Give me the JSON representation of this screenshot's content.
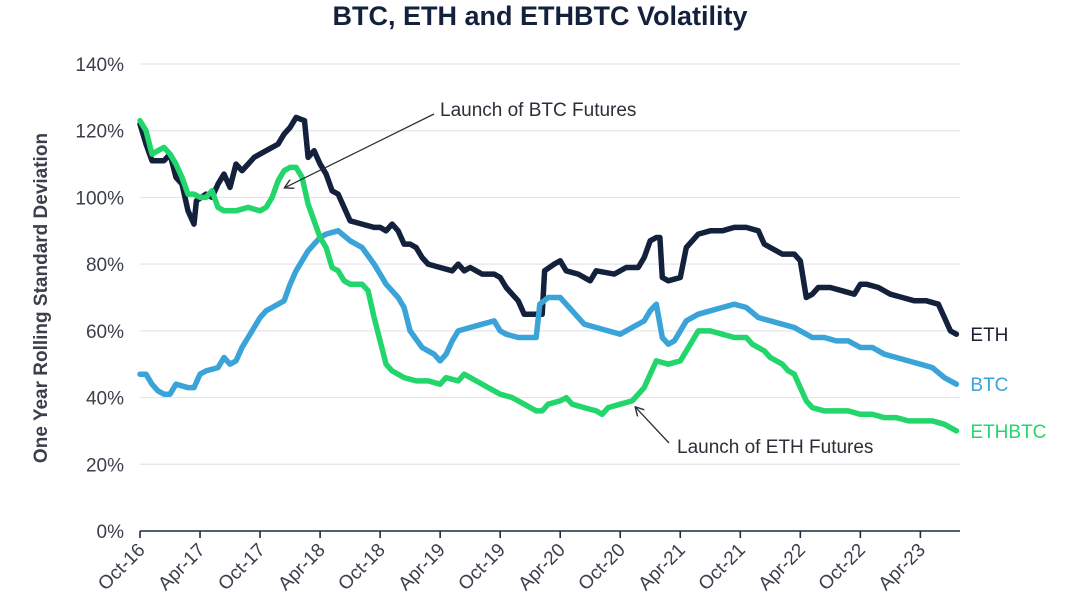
{
  "chart_data": {
    "type": "line",
    "title": "BTC, ETH and ETHBTC Volatility",
    "xlabel": "",
    "ylabel": "One Year Rolling Standard Deviation",
    "ylim": [
      0,
      140
    ],
    "yticks": [
      "0%",
      "20%",
      "40%",
      "60%",
      "80%",
      "100%",
      "120%",
      "140%"
    ],
    "xlim": [
      2016.75,
      2023.58
    ],
    "x_ticks": [
      {
        "label": "Oct-16",
        "x": 2016.75
      },
      {
        "label": "Apr-17",
        "x": 2017.25
      },
      {
        "label": "Oct-17",
        "x": 2017.75
      },
      {
        "label": "Apr-18",
        "x": 2018.25
      },
      {
        "label": "Oct-18",
        "x": 2018.75
      },
      {
        "label": "Apr-19",
        "x": 2019.25
      },
      {
        "label": "Oct-19",
        "x": 2019.75
      },
      {
        "label": "Apr-20",
        "x": 2020.25
      },
      {
        "label": "Oct-20",
        "x": 2020.75
      },
      {
        "label": "Apr-21",
        "x": 2021.25
      },
      {
        "label": "Oct-21",
        "x": 2021.75
      },
      {
        "label": "Apr-22",
        "x": 2022.25
      },
      {
        "label": "Oct-22",
        "x": 2022.75
      },
      {
        "label": "Apr-23",
        "x": 2023.25
      }
    ],
    "series": [
      {
        "name": "ETH",
        "color": "#14213d",
        "points": [
          [
            2016.75,
            122
          ],
          [
            2016.8,
            116
          ],
          [
            2016.85,
            111
          ],
          [
            2016.95,
            111
          ],
          [
            2017.0,
            113
          ],
          [
            2017.05,
            106
          ],
          [
            2017.1,
            104
          ],
          [
            2017.15,
            96
          ],
          [
            2017.2,
            92
          ],
          [
            2017.22,
            99
          ],
          [
            2017.3,
            101
          ],
          [
            2017.35,
            100
          ],
          [
            2017.4,
            104
          ],
          [
            2017.45,
            107
          ],
          [
            2017.5,
            103
          ],
          [
            2017.55,
            110
          ],
          [
            2017.6,
            108
          ],
          [
            2017.65,
            110
          ],
          [
            2017.7,
            112
          ],
          [
            2017.8,
            114
          ],
          [
            2017.9,
            116
          ],
          [
            2017.95,
            119
          ],
          [
            2018.0,
            121
          ],
          [
            2018.05,
            124
          ],
          [
            2018.12,
            123
          ],
          [
            2018.15,
            112
          ],
          [
            2018.2,
            114
          ],
          [
            2018.25,
            110
          ],
          [
            2018.3,
            107
          ],
          [
            2018.35,
            102
          ],
          [
            2018.4,
            101
          ],
          [
            2018.45,
            97
          ],
          [
            2018.5,
            93
          ],
          [
            2018.6,
            92
          ],
          [
            2018.7,
            91
          ],
          [
            2018.75,
            91
          ],
          [
            2018.8,
            90
          ],
          [
            2018.85,
            92
          ],
          [
            2018.9,
            90
          ],
          [
            2018.95,
            86
          ],
          [
            2019.0,
            86
          ],
          [
            2019.05,
            85
          ],
          [
            2019.1,
            82
          ],
          [
            2019.15,
            80
          ],
          [
            2019.25,
            79
          ],
          [
            2019.35,
            78
          ],
          [
            2019.4,
            80
          ],
          [
            2019.45,
            78
          ],
          [
            2019.5,
            79
          ],
          [
            2019.6,
            77
          ],
          [
            2019.7,
            77
          ],
          [
            2019.75,
            76
          ],
          [
            2019.8,
            73
          ],
          [
            2019.85,
            71
          ],
          [
            2019.9,
            69
          ],
          [
            2019.95,
            65
          ],
          [
            2020.05,
            65
          ],
          [
            2020.1,
            65
          ],
          [
            2020.12,
            78
          ],
          [
            2020.2,
            80
          ],
          [
            2020.25,
            81
          ],
          [
            2020.3,
            78
          ],
          [
            2020.4,
            77
          ],
          [
            2020.5,
            75
          ],
          [
            2020.55,
            78
          ],
          [
            2020.7,
            77
          ],
          [
            2020.8,
            79
          ],
          [
            2020.9,
            79
          ],
          [
            2020.95,
            82
          ],
          [
            2021.0,
            87
          ],
          [
            2021.05,
            88
          ],
          [
            2021.08,
            88
          ],
          [
            2021.1,
            76
          ],
          [
            2021.15,
            75
          ],
          [
            2021.25,
            76
          ],
          [
            2021.3,
            85
          ],
          [
            2021.4,
            89
          ],
          [
            2021.5,
            90
          ],
          [
            2021.6,
            90
          ],
          [
            2021.7,
            91
          ],
          [
            2021.8,
            91
          ],
          [
            2021.9,
            90
          ],
          [
            2021.95,
            86
          ],
          [
            2022.0,
            85
          ],
          [
            2022.1,
            83
          ],
          [
            2022.2,
            83
          ],
          [
            2022.25,
            81
          ],
          [
            2022.3,
            70
          ],
          [
            2022.35,
            71
          ],
          [
            2022.4,
            73
          ],
          [
            2022.5,
            73
          ],
          [
            2022.6,
            72
          ],
          [
            2022.7,
            71
          ],
          [
            2022.75,
            74
          ],
          [
            2022.8,
            74
          ],
          [
            2022.9,
            73
          ],
          [
            2023.0,
            71
          ],
          [
            2023.1,
            70
          ],
          [
            2023.2,
            69
          ],
          [
            2023.3,
            69
          ],
          [
            2023.4,
            68
          ],
          [
            2023.45,
            64
          ],
          [
            2023.5,
            60
          ],
          [
            2023.55,
            59
          ]
        ]
      },
      {
        "name": "BTC",
        "color": "#3aa3d8",
        "points": [
          [
            2016.75,
            47
          ],
          [
            2016.8,
            47
          ],
          [
            2016.85,
            44
          ],
          [
            2016.9,
            42
          ],
          [
            2016.95,
            41
          ],
          [
            2017.0,
            41
          ],
          [
            2017.05,
            44
          ],
          [
            2017.15,
            43
          ],
          [
            2017.2,
            43
          ],
          [
            2017.25,
            47
          ],
          [
            2017.3,
            48
          ],
          [
            2017.4,
            49
          ],
          [
            2017.45,
            52
          ],
          [
            2017.5,
            50
          ],
          [
            2017.55,
            51
          ],
          [
            2017.6,
            55
          ],
          [
            2017.7,
            61
          ],
          [
            2017.75,
            64
          ],
          [
            2017.8,
            66
          ],
          [
            2017.85,
            67
          ],
          [
            2017.95,
            69
          ],
          [
            2018.0,
            74
          ],
          [
            2018.05,
            78
          ],
          [
            2018.15,
            84
          ],
          [
            2018.25,
            88
          ],
          [
            2018.3,
            89
          ],
          [
            2018.4,
            90
          ],
          [
            2018.5,
            87
          ],
          [
            2018.6,
            85
          ],
          [
            2018.7,
            80
          ],
          [
            2018.75,
            77
          ],
          [
            2018.8,
            74
          ],
          [
            2018.85,
            72
          ],
          [
            2018.9,
            70
          ],
          [
            2018.95,
            67
          ],
          [
            2019.0,
            60
          ],
          [
            2019.1,
            55
          ],
          [
            2019.15,
            54
          ],
          [
            2019.2,
            53
          ],
          [
            2019.25,
            51
          ],
          [
            2019.3,
            53
          ],
          [
            2019.35,
            57
          ],
          [
            2019.4,
            60
          ],
          [
            2019.5,
            61
          ],
          [
            2019.6,
            62
          ],
          [
            2019.7,
            63
          ],
          [
            2019.75,
            60
          ],
          [
            2019.8,
            59
          ],
          [
            2019.9,
            58
          ],
          [
            2020.0,
            58
          ],
          [
            2020.05,
            58
          ],
          [
            2020.08,
            68
          ],
          [
            2020.15,
            70
          ],
          [
            2020.25,
            70
          ],
          [
            2020.35,
            66
          ],
          [
            2020.45,
            62
          ],
          [
            2020.55,
            61
          ],
          [
            2020.65,
            60
          ],
          [
            2020.75,
            59
          ],
          [
            2020.85,
            61
          ],
          [
            2020.95,
            63
          ],
          [
            2021.0,
            66
          ],
          [
            2021.05,
            68
          ],
          [
            2021.1,
            58
          ],
          [
            2021.15,
            56
          ],
          [
            2021.2,
            57
          ],
          [
            2021.3,
            63
          ],
          [
            2021.4,
            65
          ],
          [
            2021.5,
            66
          ],
          [
            2021.6,
            67
          ],
          [
            2021.7,
            68
          ],
          [
            2021.8,
            67
          ],
          [
            2021.9,
            64
          ],
          [
            2022.0,
            63
          ],
          [
            2022.1,
            62
          ],
          [
            2022.2,
            61
          ],
          [
            2022.25,
            60
          ],
          [
            2022.35,
            58
          ],
          [
            2022.45,
            58
          ],
          [
            2022.55,
            57
          ],
          [
            2022.65,
            57
          ],
          [
            2022.75,
            55
          ],
          [
            2022.85,
            55
          ],
          [
            2022.95,
            53
          ],
          [
            2023.05,
            52
          ],
          [
            2023.15,
            51
          ],
          [
            2023.25,
            50
          ],
          [
            2023.35,
            49
          ],
          [
            2023.45,
            46
          ],
          [
            2023.55,
            44
          ]
        ]
      },
      {
        "name": "ETHBTC",
        "color": "#22d66b",
        "points": [
          [
            2016.75,
            123
          ],
          [
            2016.8,
            120
          ],
          [
            2016.85,
            113
          ],
          [
            2016.9,
            114
          ],
          [
            2016.95,
            115
          ],
          [
            2017.0,
            113
          ],
          [
            2017.05,
            110
          ],
          [
            2017.1,
            106
          ],
          [
            2017.15,
            101
          ],
          [
            2017.2,
            101
          ],
          [
            2017.25,
            100
          ],
          [
            2017.3,
            100
          ],
          [
            2017.35,
            102
          ],
          [
            2017.4,
            97
          ],
          [
            2017.45,
            96
          ],
          [
            2017.55,
            96
          ],
          [
            2017.65,
            97
          ],
          [
            2017.75,
            96
          ],
          [
            2017.8,
            97
          ],
          [
            2017.85,
            100
          ],
          [
            2017.9,
            105
          ],
          [
            2017.95,
            108
          ],
          [
            2018.0,
            109
          ],
          [
            2018.05,
            109
          ],
          [
            2018.1,
            106
          ],
          [
            2018.15,
            98
          ],
          [
            2018.2,
            93
          ],
          [
            2018.25,
            88
          ],
          [
            2018.3,
            85
          ],
          [
            2018.35,
            79
          ],
          [
            2018.4,
            78
          ],
          [
            2018.45,
            75
          ],
          [
            2018.5,
            74
          ],
          [
            2018.55,
            74
          ],
          [
            2018.6,
            74
          ],
          [
            2018.65,
            72
          ],
          [
            2018.7,
            64
          ],
          [
            2018.75,
            57
          ],
          [
            2018.8,
            50
          ],
          [
            2018.85,
            48
          ],
          [
            2018.9,
            47
          ],
          [
            2018.95,
            46
          ],
          [
            2019.05,
            45
          ],
          [
            2019.15,
            45
          ],
          [
            2019.25,
            44
          ],
          [
            2019.3,
            46
          ],
          [
            2019.4,
            45
          ],
          [
            2019.45,
            47
          ],
          [
            2019.55,
            45
          ],
          [
            2019.65,
            43
          ],
          [
            2019.75,
            41
          ],
          [
            2019.85,
            40
          ],
          [
            2019.95,
            38
          ],
          [
            2020.05,
            36
          ],
          [
            2020.1,
            36
          ],
          [
            2020.15,
            38
          ],
          [
            2020.25,
            39
          ],
          [
            2020.3,
            40
          ],
          [
            2020.35,
            38
          ],
          [
            2020.45,
            37
          ],
          [
            2020.55,
            36
          ],
          [
            2020.6,
            35
          ],
          [
            2020.65,
            37
          ],
          [
            2020.75,
            38
          ],
          [
            2020.85,
            39
          ],
          [
            2020.95,
            43
          ],
          [
            2021.0,
            47
          ],
          [
            2021.05,
            51
          ],
          [
            2021.15,
            50
          ],
          [
            2021.25,
            51
          ],
          [
            2021.3,
            54
          ],
          [
            2021.4,
            60
          ],
          [
            2021.5,
            60
          ],
          [
            2021.6,
            59
          ],
          [
            2021.7,
            58
          ],
          [
            2021.8,
            58
          ],
          [
            2021.85,
            56
          ],
          [
            2021.95,
            54
          ],
          [
            2022.0,
            52
          ],
          [
            2022.1,
            50
          ],
          [
            2022.15,
            48
          ],
          [
            2022.2,
            47
          ],
          [
            2022.25,
            43
          ],
          [
            2022.3,
            39
          ],
          [
            2022.35,
            37
          ],
          [
            2022.45,
            36
          ],
          [
            2022.55,
            36
          ],
          [
            2022.65,
            36
          ],
          [
            2022.75,
            35
          ],
          [
            2022.85,
            35
          ],
          [
            2022.95,
            34
          ],
          [
            2023.05,
            34
          ],
          [
            2023.15,
            33
          ],
          [
            2023.25,
            33
          ],
          [
            2023.35,
            33
          ],
          [
            2023.45,
            32
          ],
          [
            2023.55,
            30
          ]
        ]
      }
    ],
    "series_labels": [
      {
        "name": "ETH",
        "anchor": "ETH"
      },
      {
        "name": "BTC",
        "anchor": "BTC"
      },
      {
        "name": "ETHBTC",
        "anchor": "ETHBTC"
      }
    ],
    "annotations": [
      {
        "text": "Launch of BTC Futures",
        "x": 2017.96,
        "y": 103
      },
      {
        "text": "Launch of ETH Futures",
        "x": 2020.88,
        "y": 37
      }
    ]
  }
}
